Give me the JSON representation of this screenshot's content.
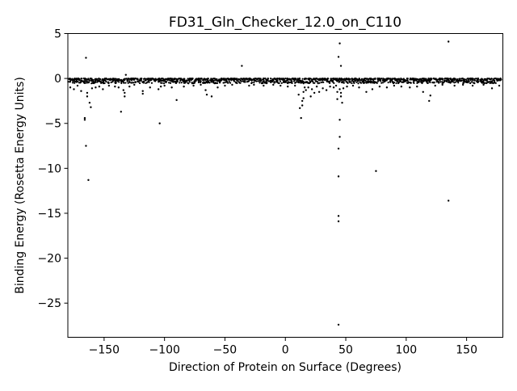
{
  "chart_data": {
    "type": "scatter",
    "title": "FD31_Gln_Checker_12.0_on_C110",
    "xlabel": "Direction of Protein on Surface (Degrees)",
    "ylabel": "Binding Energy (Rosetta Energy Units)",
    "xlim": [
      -180,
      180
    ],
    "ylim": [
      -28.8,
      5
    ],
    "xticks": [
      -150,
      -100,
      -50,
      0,
      50,
      100,
      150
    ],
    "xtick_labels": [
      "−150",
      "−100",
      "−50",
      "0",
      "50",
      "100",
      "150"
    ],
    "yticks": [
      -25,
      -20,
      -15,
      -10,
      -5,
      0,
      5
    ],
    "ytick_labels": [
      "−25",
      "−20",
      "−15",
      "−10",
      "−5",
      "0",
      "5"
    ],
    "grid": false,
    "legend": "none",
    "marker_color": "#000000",
    "band": {
      "description": "dense band of points near zero across all directions",
      "x_step": 1.5,
      "y_min": -0.55,
      "y_max": 0
    },
    "points": [
      {
        "x": -178,
        "y": -1.0
      },
      {
        "x": -175,
        "y": -1.2
      },
      {
        "x": -172,
        "y": -0.8
      },
      {
        "x": -169,
        "y": -1.4
      },
      {
        "x": -166,
        "y": -4.4
      },
      {
        "x": -166,
        "y": -4.6
      },
      {
        "x": -165,
        "y": -7.5
      },
      {
        "x": -165,
        "y": 2.3
      },
      {
        "x": -164,
        "y": -1.6
      },
      {
        "x": -164,
        "y": -2.0
      },
      {
        "x": -163,
        "y": -11.3
      },
      {
        "x": -162,
        "y": -2.7
      },
      {
        "x": -161,
        "y": -3.2
      },
      {
        "x": -160,
        "y": -1.1
      },
      {
        "x": -157,
        "y": -1.0
      },
      {
        "x": -154,
        "y": -0.9
      },
      {
        "x": -151,
        "y": -1.2
      },
      {
        "x": -146,
        "y": -0.8
      },
      {
        "x": -141,
        "y": -0.9
      },
      {
        "x": -138,
        "y": -1.0
      },
      {
        "x": -136,
        "y": -3.7
      },
      {
        "x": -134,
        "y": -1.3
      },
      {
        "x": -133,
        "y": -1.6
      },
      {
        "x": -133,
        "y": -2.0
      },
      {
        "x": -132,
        "y": 0.4
      },
      {
        "x": -129,
        "y": -0.9
      },
      {
        "x": -125,
        "y": -0.7
      },
      {
        "x": -118,
        "y": -1.4
      },
      {
        "x": -118,
        "y": -1.7
      },
      {
        "x": -112,
        "y": -1.0
      },
      {
        "x": -105,
        "y": -1.2
      },
      {
        "x": -104,
        "y": -5.0
      },
      {
        "x": -103,
        "y": -0.9
      },
      {
        "x": -100,
        "y": -0.8
      },
      {
        "x": -94,
        "y": -1.0
      },
      {
        "x": -90,
        "y": -2.4
      },
      {
        "x": -84,
        "y": -0.9
      },
      {
        "x": -76,
        "y": -0.8
      },
      {
        "x": -70,
        "y": -0.7
      },
      {
        "x": -66,
        "y": -1.3
      },
      {
        "x": -65,
        "y": -1.8
      },
      {
        "x": -61,
        "y": -2.0
      },
      {
        "x": -56,
        "y": -1.0
      },
      {
        "x": -50,
        "y": -0.8
      },
      {
        "x": -44,
        "y": -0.7
      },
      {
        "x": -36,
        "y": 1.4
      },
      {
        "x": -30,
        "y": -0.8
      },
      {
        "x": -26,
        "y": -0.7
      },
      {
        "x": -18,
        "y": -0.8
      },
      {
        "x": -10,
        "y": -0.7
      },
      {
        "x": -4,
        "y": -0.8
      },
      {
        "x": 2,
        "y": -0.9
      },
      {
        "x": 8,
        "y": -0.8
      },
      {
        "x": 11,
        "y": -1.8
      },
      {
        "x": 12,
        "y": -3.3
      },
      {
        "x": 13,
        "y": -4.4
      },
      {
        "x": 14,
        "y": -2.5
      },
      {
        "x": 14,
        "y": -3.0
      },
      {
        "x": 15,
        "y": -1.5
      },
      {
        "x": 15,
        "y": -2.2
      },
      {
        "x": 16,
        "y": -1.0
      },
      {
        "x": 17,
        "y": -1.3
      },
      {
        "x": 19,
        "y": -1.0
      },
      {
        "x": 21,
        "y": -2.0
      },
      {
        "x": 22,
        "y": -1.2
      },
      {
        "x": 24,
        "y": -1.6
      },
      {
        "x": 26,
        "y": -0.9
      },
      {
        "x": 28,
        "y": -1.5
      },
      {
        "x": 31,
        "y": -1.1
      },
      {
        "x": 34,
        "y": -1.3
      },
      {
        "x": 37,
        "y": -0.9
      },
      {
        "x": 40,
        "y": -1.0
      },
      {
        "x": 42,
        "y": -0.8
      },
      {
        "x": 43,
        "y": -1.5
      },
      {
        "x": 43,
        "y": -2.3
      },
      {
        "x": 44,
        "y": -10.9
      },
      {
        "x": 44,
        "y": -15.3
      },
      {
        "x": 44,
        "y": -15.9
      },
      {
        "x": 44,
        "y": -27.4
      },
      {
        "x": 44,
        "y": -7.8
      },
      {
        "x": 44,
        "y": 2.4
      },
      {
        "x": 45,
        "y": 3.9
      },
      {
        "x": 45,
        "y": -4.6
      },
      {
        "x": 45,
        "y": -6.5
      },
      {
        "x": 45,
        "y": -1.2
      },
      {
        "x": 46,
        "y": 1.4
      },
      {
        "x": 46,
        "y": -1.6
      },
      {
        "x": 46,
        "y": -2.0
      },
      {
        "x": 47,
        "y": -2.7
      },
      {
        "x": 48,
        "y": -1.1
      },
      {
        "x": 51,
        "y": -0.9
      },
      {
        "x": 56,
        "y": -0.8
      },
      {
        "x": 61,
        "y": -1.0
      },
      {
        "x": 67,
        "y": -1.5
      },
      {
        "x": 72,
        "y": -1.2
      },
      {
        "x": 75,
        "y": -10.3
      },
      {
        "x": 78,
        "y": -0.9
      },
      {
        "x": 84,
        "y": -1.0
      },
      {
        "x": 90,
        "y": -0.8
      },
      {
        "x": 96,
        "y": -0.9
      },
      {
        "x": 103,
        "y": -1.0
      },
      {
        "x": 109,
        "y": -0.9
      },
      {
        "x": 114,
        "y": -1.5
      },
      {
        "x": 119,
        "y": -2.5
      },
      {
        "x": 120,
        "y": -1.9
      },
      {
        "x": 124,
        "y": -0.8
      },
      {
        "x": 130,
        "y": -0.7
      },
      {
        "x": 135,
        "y": 4.1
      },
      {
        "x": 135,
        "y": -13.6
      },
      {
        "x": 140,
        "y": -0.8
      },
      {
        "x": 147,
        "y": -0.7
      },
      {
        "x": 155,
        "y": -0.8
      },
      {
        "x": 164,
        "y": -0.7
      },
      {
        "x": 171,
        "y": -1.1
      },
      {
        "x": 177,
        "y": -0.8
      }
    ]
  }
}
